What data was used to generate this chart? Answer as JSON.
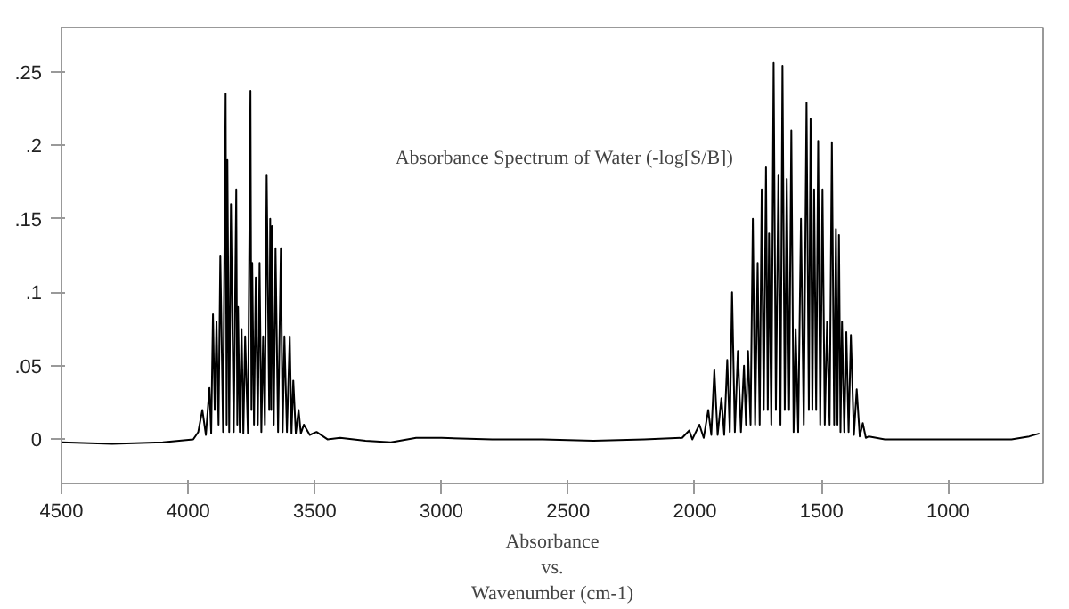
{
  "chart_data": {
    "type": "line",
    "xlabel": "Absorbance\nvs.\nWavenumber (cm-1)",
    "annotations": [
      "Absorbance Spectrum of Water (-log[S/B])"
    ],
    "xlim": [
      4500,
      625
    ],
    "ylim": [
      -0.03,
      0.28
    ],
    "xticks": [
      4500,
      4000,
      3500,
      3000,
      2500,
      2000,
      1500,
      1000
    ],
    "yticks": [
      {
        "value": 0,
        "label": "0"
      },
      {
        "value": 0.05,
        "label": ".05"
      },
      {
        "value": 0.1,
        "label": ".1"
      },
      {
        "value": 0.15,
        "label": ".15"
      },
      {
        "value": 0.2,
        "label": ".2"
      },
      {
        "value": 0.25,
        "label": ".25"
      }
    ],
    "grid": false,
    "marker": "none",
    "line_style": "solid",
    "series": [
      {
        "color": "#000000",
        "x": [
          4500,
          4300,
          4100,
          3980,
          3960,
          3944,
          3930,
          3916,
          3909,
          3902,
          3895,
          3888,
          3880,
          3873,
          3862,
          3852,
          3848,
          3845,
          3838,
          3831,
          3820,
          3810,
          3806,
          3803,
          3796,
          3789,
          3782,
          3775,
          3764,
          3754,
          3750,
          3747,
          3740,
          3733,
          3725,
          3718,
          3711,
          3704,
          3697,
          3690,
          3680,
          3676,
          3672,
          3669,
          3662,
          3655,
          3645,
          3634,
          3627,
          3620,
          3610,
          3599,
          3592,
          3585,
          3575,
          3564,
          3555,
          3543,
          3520,
          3493,
          3450,
          3400,
          3300,
          3200,
          3100,
          3000,
          2800,
          2600,
          2400,
          2200,
          2050,
          2022,
          2010,
          1982,
          1965,
          1947,
          1935,
          1923,
          1910,
          1895,
          1884,
          1872,
          1862,
          1853,
          1842,
          1830,
          1818,
          1806,
          1798,
          1790,
          1780,
          1771,
          1762,
          1752,
          1744,
          1736,
          1728,
          1719,
          1712,
          1707,
          1698,
          1689,
          1680,
          1670,
          1662,
          1654,
          1645,
          1637,
          1628,
          1619,
          1610,
          1602,
          1592,
          1581,
          1570,
          1559,
          1550,
          1543,
          1536,
          1529,
          1521,
          1513,
          1505,
          1496,
          1487,
          1478,
          1468,
          1459,
          1450,
          1443,
          1437,
          1431,
          1425,
          1419,
          1410,
          1402,
          1393,
          1384,
          1372,
          1361,
          1349,
          1337,
          1325,
          1313,
          1250,
          1100,
          900,
          750,
          680,
          640
        ],
        "values": [
          -0.002,
          -0.003,
          -0.002,
          0.0,
          0.005,
          0.02,
          0.003,
          0.035,
          0.004,
          0.085,
          0.02,
          0.08,
          0.01,
          0.125,
          0.005,
          0.235,
          0.01,
          0.19,
          0.005,
          0.16,
          0.005,
          0.17,
          0.01,
          0.09,
          0.005,
          0.075,
          0.004,
          0.07,
          0.004,
          0.237,
          0.02,
          0.12,
          0.01,
          0.11,
          0.01,
          0.12,
          0.005,
          0.07,
          0.01,
          0.18,
          0.02,
          0.15,
          0.02,
          0.145,
          0.01,
          0.13,
          0.005,
          0.13,
          0.005,
          0.07,
          0.005,
          0.07,
          0.004,
          0.04,
          0.004,
          0.02,
          0.004,
          0.01,
          0.003,
          0.005,
          0.0,
          0.001,
          -0.001,
          -0.002,
          0.001,
          0.001,
          0.0,
          0.0,
          -0.001,
          0.0,
          0.001,
          0.006,
          0.0,
          0.01,
          0.001,
          0.02,
          0.003,
          0.047,
          0.003,
          0.028,
          0.003,
          0.054,
          0.005,
          0.1,
          0.005,
          0.06,
          0.005,
          0.05,
          0.01,
          0.06,
          0.01,
          0.15,
          0.01,
          0.12,
          0.01,
          0.17,
          0.02,
          0.185,
          0.02,
          0.14,
          0.01,
          0.256,
          0.02,
          0.18,
          0.01,
          0.254,
          0.02,
          0.177,
          0.02,
          0.21,
          0.005,
          0.075,
          0.005,
          0.15,
          0.01,
          0.229,
          0.02,
          0.218,
          0.02,
          0.17,
          0.02,
          0.203,
          0.01,
          0.17,
          0.01,
          0.08,
          0.01,
          0.202,
          0.01,
          0.143,
          0.01,
          0.139,
          0.005,
          0.08,
          0.005,
          0.073,
          0.005,
          0.071,
          0.003,
          0.034,
          0.002,
          0.011,
          0.001,
          0.002,
          0.0,
          0.0,
          0.0,
          0.0,
          0.002,
          0.004
        ]
      }
    ]
  }
}
